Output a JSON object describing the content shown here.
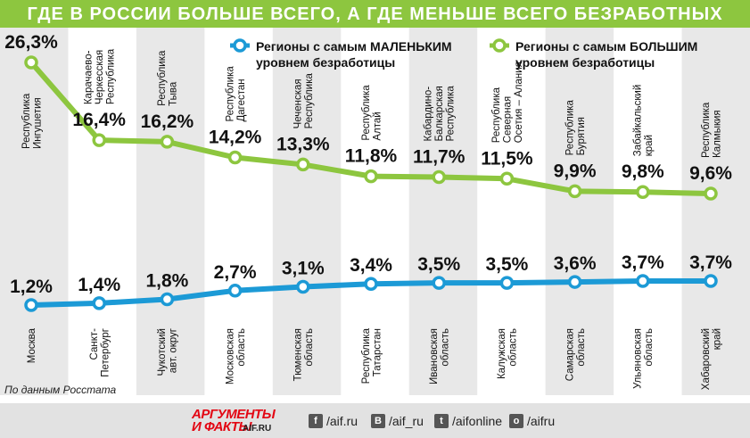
{
  "title": "ГДЕ В РОССИИ БОЛЬШЕ ВСЕГО, А ГДЕ МЕНЬШЕ ВСЕГО БЕЗРАБОТНЫХ",
  "source": "По данным Росстата",
  "colors": {
    "accent_green": "#8dc63f",
    "accent_blue": "#1c9ad6",
    "stripe": "#e8e8e8"
  },
  "chart_data": {
    "type": "line",
    "legend_position": "top-right",
    "series": [
      {
        "name": "Регионы с самым МАЛЕНЬКИМ уровнем безработицы",
        "legend_lines": [
          "Регионы с самым МАЛЕНЬКИМ",
          "уровнем безработицы"
        ],
        "color": "#1c9ad6",
        "values": [
          1.2,
          1.4,
          1.8,
          2.7,
          3.1,
          3.4,
          3.5,
          3.5,
          3.6,
          3.7,
          3.7
        ],
        "labels": [
          "1,2%",
          "1,4%",
          "1,8%",
          "2,7%",
          "3,1%",
          "3,4%",
          "3,5%",
          "3,5%",
          "3,6%",
          "3,7%",
          "3,7%"
        ],
        "regions": [
          [
            "Москва"
          ],
          [
            "Санкт-",
            "Петербург"
          ],
          [
            "Чукотский",
            "авт. округ"
          ],
          [
            "Московская",
            "область"
          ],
          [
            "Тюменская",
            "область"
          ],
          [
            "Республика",
            "Татарстан"
          ],
          [
            "Ивановская",
            "область"
          ],
          [
            "Калужская",
            "область"
          ],
          [
            "Самарская",
            "область"
          ],
          [
            "Ульяновская",
            "область"
          ],
          [
            "Хабаровский",
            "край"
          ]
        ]
      },
      {
        "name": "Регионы с самым БОЛЬШИМ уровнем безработицы",
        "legend_lines": [
          "Регионы с самым БОЛЬШИМ",
          "уровнем безработицы"
        ],
        "color": "#8dc63f",
        "values": [
          26.3,
          16.4,
          16.2,
          14.2,
          13.3,
          11.8,
          11.7,
          11.5,
          9.9,
          9.8,
          9.6
        ],
        "labels": [
          "26,3%",
          "16,4%",
          "16,2%",
          "14,2%",
          "13,3%",
          "11,8%",
          "11,7%",
          "11,5%",
          "9,9%",
          "9,8%",
          "9,6%"
        ],
        "regions": [
          [
            "Республика",
            "Ингушетия"
          ],
          [
            "Карачаево-",
            "Черкесская",
            "Республика"
          ],
          [
            "Республика",
            "Тыва"
          ],
          [
            "Республика",
            "Дагестан"
          ],
          [
            "Чеченская",
            "Республика"
          ],
          [
            "Республика",
            "Алтай"
          ],
          [
            "Кабардино-",
            "Балкарская",
            "Республика"
          ],
          [
            "Республика",
            "Северная",
            "Осетия – Алания"
          ],
          [
            "Республика",
            "Бурятия"
          ],
          [
            "Забайкальский",
            "край"
          ],
          [
            "Республика",
            "Калмыкия"
          ]
        ]
      }
    ]
  },
  "footer": {
    "logo_line1": "АРГУМЕНТЫ",
    "logo_line2": "И ФАКТЫ",
    "logo_domain": "AIF.RU",
    "social": [
      {
        "icon": "facebook-icon",
        "glyph": "f",
        "text": "/aif.ru"
      },
      {
        "icon": "vk-icon",
        "glyph": "В",
        "text": "/aif_ru"
      },
      {
        "icon": "twitter-icon",
        "glyph": "t",
        "text": "/aifonline"
      },
      {
        "icon": "odnoklassniki-icon",
        "glyph": "о",
        "text": "/aifru"
      }
    ]
  }
}
